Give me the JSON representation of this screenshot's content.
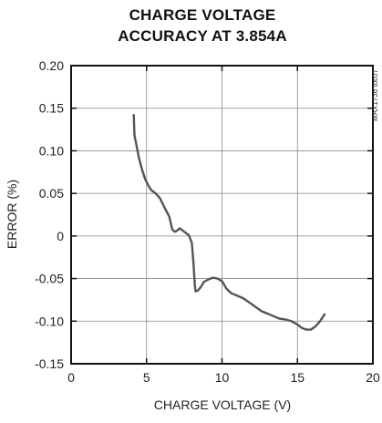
{
  "chart_data": {
    "type": "line",
    "title": [
      "CHARGE VOLTAGE",
      "ACCURACY AT 3.854A"
    ],
    "xlabel": "CHARGE VOLTAGE (V)",
    "ylabel": "ERROR (%)",
    "xlim": [
      0,
      20
    ],
    "ylim": [
      -0.15,
      0.2
    ],
    "x_ticks": [
      0,
      5,
      10,
      15,
      20
    ],
    "x_tick_labels": [
      "0",
      "5",
      "10",
      "15",
      "20"
    ],
    "y_ticks": [
      0.2,
      0.15,
      0.1,
      0.05,
      0,
      -0.05,
      -0.1,
      -0.15
    ],
    "y_tick_labels": [
      "0.20",
      "0.15",
      "0.10",
      "0.05",
      "0",
      "-0.05",
      "-0.10",
      "-0.15"
    ],
    "grid": true,
    "side_label": "MAX1736 toc07",
    "series": [
      {
        "x": [
          4.15,
          4.2,
          4.35,
          4.5,
          4.7,
          4.9,
          5.1,
          5.3,
          5.6,
          5.9,
          6.2,
          6.5,
          6.7,
          6.85,
          7.0,
          7.2,
          7.5,
          7.8,
          8.0,
          8.1,
          8.2,
          8.25,
          8.4,
          8.6,
          8.8,
          9.1,
          9.4,
          9.7,
          10.0,
          10.3,
          10.6,
          11.0,
          11.4,
          11.8,
          12.2,
          12.6,
          13.0,
          13.4,
          13.8,
          14.2,
          14.6,
          15.0,
          15.3,
          15.6,
          15.9,
          16.2,
          16.5,
          16.8
        ],
        "y": [
          0.142,
          0.118,
          0.105,
          0.091,
          0.078,
          0.067,
          0.06,
          0.054,
          0.05,
          0.044,
          0.033,
          0.023,
          0.008,
          0.005,
          0.006,
          0.009,
          0.005,
          0.001,
          -0.008,
          -0.03,
          -0.058,
          -0.065,
          -0.064,
          -0.06,
          -0.054,
          -0.051,
          -0.049,
          -0.05,
          -0.053,
          -0.062,
          -0.067,
          -0.07,
          -0.073,
          -0.078,
          -0.083,
          -0.088,
          -0.091,
          -0.094,
          -0.097,
          -0.098,
          -0.1,
          -0.104,
          -0.108,
          -0.11,
          -0.11,
          -0.106,
          -0.1,
          -0.092
        ]
      }
    ]
  }
}
